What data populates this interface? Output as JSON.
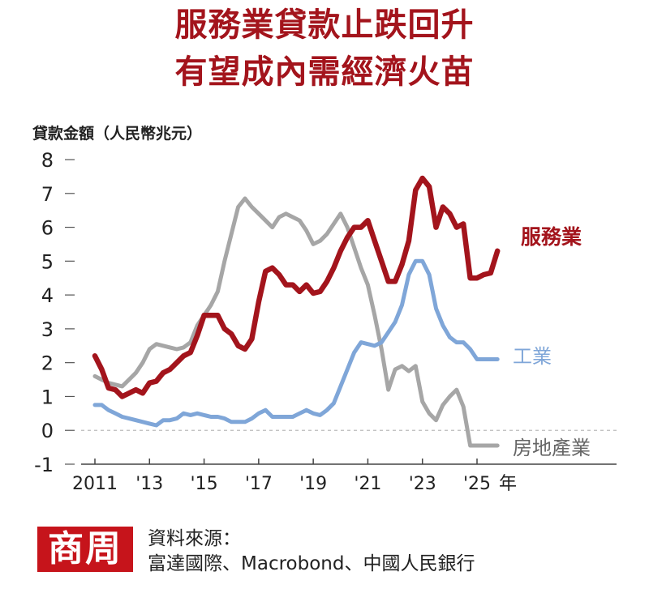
{
  "title": {
    "line1": "服務業貸款止跌回升",
    "line2": "有望成內需經濟火苗"
  },
  "source": {
    "logo": "商周",
    "label": "資料來源：",
    "text": "富達國際、Macrobond、中國人民銀行"
  },
  "colors": {
    "services": "#a3141c",
    "industry": "#7fa6d8",
    "real_estate": "#a6a6a6",
    "title": "#a3141c"
  },
  "chart_data": {
    "type": "line",
    "ylabel": "貸款金額（人民幣兆元）",
    "ylim": [
      -1,
      8
    ],
    "yticks": [
      -1,
      0,
      1,
      2,
      3,
      4,
      5,
      6,
      7,
      8
    ],
    "xlim": [
      2011,
      2027.3
    ],
    "xticks": [
      {
        "x": 2011,
        "label": "2011"
      },
      {
        "x": 2013,
        "label": "'13"
      },
      {
        "x": 2015,
        "label": "'15"
      },
      {
        "x": 2017,
        "label": "'17"
      },
      {
        "x": 2019,
        "label": "'19"
      },
      {
        "x": 2021,
        "label": "'21"
      },
      {
        "x": 2023,
        "label": "'23"
      },
      {
        "x": 2025,
        "label": "'25"
      }
    ],
    "xunit": "年",
    "zero_line": true,
    "series": [
      {
        "name": "房地產業",
        "key": "real_estate",
        "color": "#a6a6a6",
        "x": [
          2011,
          2011.25,
          2011.5,
          2011.75,
          2012,
          2012.25,
          2012.5,
          2012.75,
          2013,
          2013.25,
          2013.5,
          2013.75,
          2014,
          2014.25,
          2014.5,
          2014.75,
          2015,
          2015.25,
          2015.5,
          2015.75,
          2016,
          2016.25,
          2016.5,
          2016.75,
          2017,
          2017.25,
          2017.5,
          2017.75,
          2018,
          2018.25,
          2018.5,
          2018.75,
          2019,
          2019.25,
          2019.5,
          2019.75,
          2020,
          2020.25,
          2020.5,
          2020.75,
          2021,
          2021.25,
          2021.5,
          2021.75,
          2022,
          2022.25,
          2022.5,
          2022.75,
          2023,
          2023.25,
          2023.5,
          2023.75,
          2024,
          2024.25,
          2024.5,
          2024.75,
          2025,
          2025.25,
          2025.5,
          2025.75
        ],
        "y": [
          1.6,
          1.5,
          1.4,
          1.35,
          1.3,
          1.5,
          1.7,
          2.0,
          2.4,
          2.55,
          2.5,
          2.45,
          2.4,
          2.45,
          2.6,
          3.1,
          3.4,
          3.7,
          4.1,
          5.0,
          5.8,
          6.6,
          6.85,
          6.6,
          6.4,
          6.2,
          6.0,
          6.3,
          6.4,
          6.3,
          6.2,
          5.9,
          5.5,
          5.6,
          5.8,
          6.1,
          6.4,
          6.0,
          5.4,
          4.8,
          4.3,
          3.4,
          2.4,
          1.2,
          1.8,
          1.9,
          1.75,
          1.9,
          0.85,
          0.5,
          0.3,
          0.75,
          1.0,
          1.2,
          0.7,
          -0.45,
          -0.45,
          -0.45,
          -0.45,
          -0.45
        ]
      },
      {
        "name": "工業",
        "key": "industry",
        "color": "#7fa6d8",
        "x": [
          2011,
          2011.25,
          2011.5,
          2011.75,
          2012,
          2012.25,
          2012.5,
          2012.75,
          2013,
          2013.25,
          2013.5,
          2013.75,
          2014,
          2014.25,
          2014.5,
          2014.75,
          2015,
          2015.25,
          2015.5,
          2015.75,
          2016,
          2016.25,
          2016.5,
          2016.75,
          2017,
          2017.25,
          2017.5,
          2017.75,
          2018,
          2018.25,
          2018.5,
          2018.75,
          2019,
          2019.25,
          2019.5,
          2019.75,
          2020,
          2020.25,
          2020.5,
          2020.75,
          2021,
          2021.25,
          2021.5,
          2021.75,
          2022,
          2022.25,
          2022.5,
          2022.75,
          2023,
          2023.25,
          2023.5,
          2023.75,
          2024,
          2024.25,
          2024.5,
          2024.75,
          2025,
          2025.25,
          2025.5,
          2025.75
        ],
        "y": [
          0.75,
          0.75,
          0.6,
          0.5,
          0.4,
          0.35,
          0.3,
          0.25,
          0.2,
          0.15,
          0.3,
          0.3,
          0.35,
          0.5,
          0.45,
          0.5,
          0.45,
          0.4,
          0.4,
          0.35,
          0.25,
          0.25,
          0.25,
          0.35,
          0.5,
          0.6,
          0.4,
          0.4,
          0.4,
          0.4,
          0.5,
          0.6,
          0.5,
          0.45,
          0.6,
          0.8,
          1.3,
          1.8,
          2.3,
          2.6,
          2.55,
          2.5,
          2.6,
          2.9,
          3.2,
          3.7,
          4.6,
          5.0,
          5.0,
          4.6,
          3.6,
          3.1,
          2.75,
          2.6,
          2.6,
          2.4,
          2.1,
          2.1,
          2.1,
          2.1
        ]
      },
      {
        "name": "服務業",
        "key": "services",
        "color": "#a3141c",
        "x": [
          2011,
          2011.25,
          2011.5,
          2011.75,
          2012,
          2012.25,
          2012.5,
          2012.75,
          2013,
          2013.25,
          2013.5,
          2013.75,
          2014,
          2014.25,
          2014.5,
          2014.75,
          2015,
          2015.25,
          2015.5,
          2015.75,
          2016,
          2016.25,
          2016.5,
          2016.75,
          2017,
          2017.25,
          2017.5,
          2017.75,
          2018,
          2018.25,
          2018.5,
          2018.75,
          2019,
          2019.25,
          2019.5,
          2019.75,
          2020,
          2020.25,
          2020.5,
          2020.75,
          2021,
          2021.25,
          2021.5,
          2021.75,
          2022,
          2022.25,
          2022.5,
          2022.75,
          2023,
          2023.25,
          2023.5,
          2023.75,
          2024,
          2024.25,
          2024.5,
          2024.75,
          2025,
          2025.25,
          2025.5,
          2025.75
        ],
        "y": [
          2.2,
          1.8,
          1.25,
          1.2,
          1.0,
          1.1,
          1.2,
          1.1,
          1.4,
          1.45,
          1.7,
          1.8,
          2.0,
          2.2,
          2.3,
          2.8,
          3.4,
          3.4,
          3.4,
          3.0,
          2.85,
          2.5,
          2.4,
          2.7,
          3.8,
          4.7,
          4.8,
          4.6,
          4.3,
          4.3,
          4.1,
          4.3,
          4.05,
          4.1,
          4.4,
          4.8,
          5.3,
          5.7,
          6.0,
          6.0,
          6.2,
          5.6,
          5.0,
          4.4,
          4.4,
          4.9,
          5.6,
          7.1,
          7.45,
          7.2,
          6.0,
          6.6,
          6.4,
          6.0,
          6.1,
          4.5,
          4.5,
          4.6,
          4.65,
          5.3
        ]
      }
    ],
    "series_labels": {
      "services": "服務業",
      "industry": "工業",
      "real_estate": "房地產業"
    }
  }
}
